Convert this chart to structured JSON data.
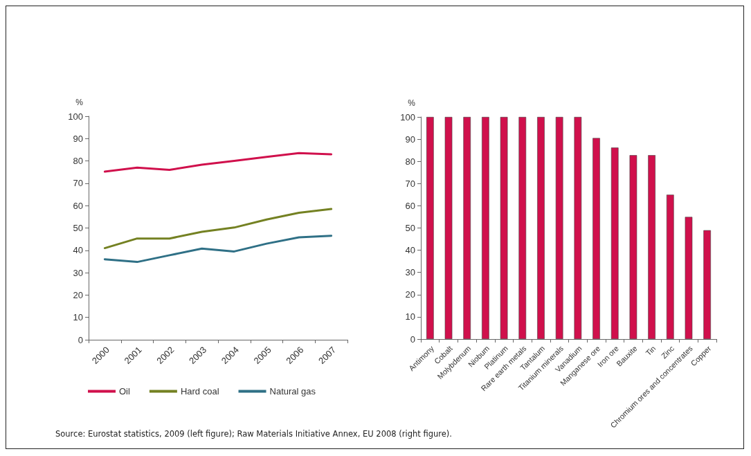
{
  "chart_data": [
    {
      "type": "line",
      "ylabel": "%",
      "categories": [
        "2000",
        "2001",
        "2002",
        "2003",
        "2004",
        "2005",
        "2006",
        "2007"
      ],
      "series": [
        {
          "name": "Oil",
          "color": "#d0104c",
          "values": [
            75.2,
            77,
            76,
            78.3,
            80,
            81.8,
            83.5,
            83
          ]
        },
        {
          "name": "Hard coal",
          "color": "#748122",
          "values": [
            41,
            45.3,
            45.3,
            48.3,
            50.2,
            53.8,
            56.8,
            58.5
          ]
        },
        {
          "name": "Natural gas",
          "color": "#2f7086",
          "values": [
            36,
            34.8,
            37.8,
            40.8,
            39.5,
            43,
            45.8,
            46.5
          ]
        }
      ],
      "ylim": [
        0,
        100
      ],
      "yticks": [
        0,
        10,
        20,
        30,
        40,
        50,
        60,
        70,
        80,
        90,
        100
      ],
      "grid": false,
      "legend": "bottom",
      "marker": "none",
      "line_style": "solid",
      "annotations": [
        "Source: Eurostat statistics, 2009 (left figure); Raw Materials Initiative Annex, EU 2008 (right figure)."
      ]
    },
    {
      "type": "bar",
      "ylabel": "%",
      "categories": [
        "Antimony",
        "Cobalt",
        "Molybdenum",
        "Niobum",
        "Platinum",
        "Rare earth metals",
        "Tantalum",
        "Titanium minerals",
        "Vanadium",
        "Manganese ore",
        "Iron ore",
        "Bauxite",
        "Tin",
        "Zinc",
        "Chromium ores and concentrates",
        "Copper"
      ],
      "values": [
        100,
        100,
        100,
        100,
        100,
        100,
        100,
        100,
        100,
        90.5,
        86.2,
        82.8,
        82.8,
        65,
        55,
        49
      ],
      "color": "#d0104c",
      "ylim": [
        0,
        100
      ],
      "yticks": [
        0,
        10,
        20,
        30,
        40,
        50,
        60,
        70,
        80,
        90,
        100
      ],
      "grid": false,
      "legend": false
    }
  ]
}
